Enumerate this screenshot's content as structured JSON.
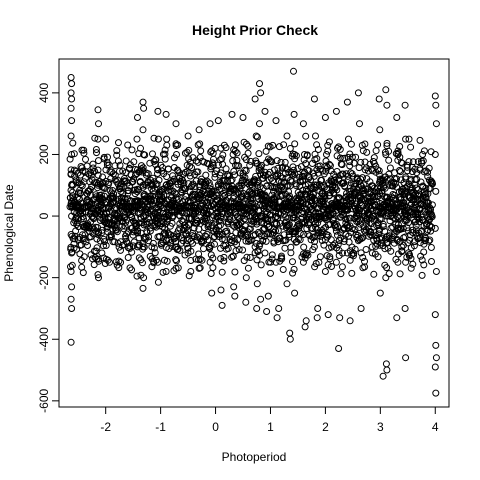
{
  "chart_data": {
    "type": "scatter",
    "title": "Height Prior Check",
    "xlabel": "Photoperiod",
    "ylabel": "Phenological Date",
    "xlim": [
      -2.85,
      4.25
    ],
    "ylim": [
      -620,
      510
    ],
    "xticks": [
      -2,
      -1,
      0,
      1,
      2,
      3,
      4
    ],
    "xtick_labels": [
      "-2",
      "-1",
      "0",
      "1",
      "2",
      "3",
      "4"
    ],
    "yticks": [
      -600,
      -400,
      -200,
      0,
      200,
      400
    ],
    "ytick_labels": [
      "-600",
      "-400",
      "-200",
      "0",
      "200",
      "400"
    ],
    "grid": false,
    "marker": "open-circle",
    "point_color": "#000000",
    "series": [
      {
        "points": [
          [
            -2.63,
            450
          ],
          [
            -2.62,
            430
          ],
          [
            -2.63,
            400
          ],
          [
            -2.62,
            380
          ],
          [
            -2.63,
            350
          ],
          [
            -2.62,
            310
          ],
          [
            -2.63,
            260
          ],
          [
            -2.62,
            200
          ],
          [
            -2.63,
            150
          ],
          [
            -2.62,
            100
          ],
          [
            -2.63,
            40
          ],
          [
            -2.62,
            0
          ],
          [
            -2.63,
            -60
          ],
          [
            -2.62,
            -120
          ],
          [
            -2.63,
            -180
          ],
          [
            -2.62,
            -230
          ],
          [
            -2.63,
            -270
          ],
          [
            -2.62,
            -300
          ],
          [
            -2.63,
            -410
          ],
          [
            -2.14,
            345
          ],
          [
            -2.13,
            300
          ],
          [
            -2.14,
            250
          ],
          [
            -2.13,
            180
          ],
          [
            -2.14,
            100
          ],
          [
            -2.13,
            20
          ],
          [
            -2.14,
            -60
          ],
          [
            -2.13,
            -140
          ],
          [
            -2.14,
            -190
          ],
          [
            -2.13,
            -200
          ],
          [
            -1.42,
            320
          ],
          [
            -1.43,
            250
          ],
          [
            -1.42,
            150
          ],
          [
            -1.43,
            50
          ],
          [
            -1.42,
            -100
          ],
          [
            -1.43,
            -195
          ],
          [
            -1.32,
            370
          ],
          [
            -1.31,
            350
          ],
          [
            -1.32,
            280
          ],
          [
            -1.31,
            200
          ],
          [
            -1.32,
            100
          ],
          [
            -1.31,
            0
          ],
          [
            -1.32,
            -100
          ],
          [
            -1.31,
            -200
          ],
          [
            -1.32,
            -235
          ],
          [
            -1.05,
            340
          ],
          [
            -1.04,
            250
          ],
          [
            -1.05,
            150
          ],
          [
            -1.04,
            0
          ],
          [
            -1.05,
            -150
          ],
          [
            -1.04,
            -215
          ],
          [
            -0.9,
            330
          ],
          [
            -0.89,
            250
          ],
          [
            -0.9,
            100
          ],
          [
            -0.89,
            -80
          ],
          [
            -0.9,
            -180
          ],
          [
            -0.72,
            300
          ],
          [
            -0.71,
            200
          ],
          [
            -0.72,
            60
          ],
          [
            -0.71,
            -100
          ],
          [
            -0.72,
            -170
          ],
          [
            -0.5,
            260
          ],
          [
            -0.48,
            140
          ],
          [
            -0.47,
            10
          ],
          [
            -0.5,
            -120
          ],
          [
            -0.45,
            -180
          ],
          [
            -0.3,
            280
          ],
          [
            -0.28,
            190
          ],
          [
            -0.27,
            60
          ],
          [
            -0.26,
            -80
          ],
          [
            -0.3,
            -170
          ],
          [
            -0.1,
            300
          ],
          [
            -0.08,
            160
          ],
          [
            -0.06,
            40
          ],
          [
            -0.1,
            -150
          ],
          [
            -0.07,
            -250
          ],
          [
            0.05,
            310
          ],
          [
            0.1,
            220
          ],
          [
            0.12,
            100
          ],
          [
            0.08,
            -60
          ],
          [
            0.1,
            -240
          ],
          [
            0.12,
            -290
          ],
          [
            0.3,
            330
          ],
          [
            0.32,
            200
          ],
          [
            0.34,
            80
          ],
          [
            0.3,
            -80
          ],
          [
            0.33,
            -230
          ],
          [
            0.35,
            -260
          ],
          [
            0.5,
            320
          ],
          [
            0.52,
            240
          ],
          [
            0.55,
            110
          ],
          [
            0.5,
            -50
          ],
          [
            0.56,
            -200
          ],
          [
            0.55,
            -280
          ],
          [
            0.72,
            380
          ],
          [
            0.74,
            260
          ],
          [
            0.76,
            100
          ],
          [
            0.72,
            -100
          ],
          [
            0.76,
            -220
          ],
          [
            0.75,
            -300
          ],
          [
            0.8,
            430
          ],
          [
            0.82,
            400
          ],
          [
            0.8,
            300
          ],
          [
            0.83,
            150
          ],
          [
            0.81,
            -90
          ],
          [
            0.82,
            -270
          ],
          [
            0.9,
            340
          ],
          [
            0.92,
            210
          ],
          [
            0.95,
            50
          ],
          [
            0.9,
            -120
          ],
          [
            0.96,
            -260
          ],
          [
            0.93,
            -310
          ],
          [
            1.1,
            310
          ],
          [
            1.12,
            180
          ],
          [
            1.14,
            30
          ],
          [
            1.1,
            -150
          ],
          [
            1.15,
            -300
          ],
          [
            1.12,
            -330
          ],
          [
            1.3,
            260
          ],
          [
            1.32,
            100
          ],
          [
            1.34,
            -60
          ],
          [
            1.3,
            -220
          ],
          [
            1.36,
            -400
          ],
          [
            1.35,
            -380
          ],
          [
            1.42,
            470
          ],
          [
            1.43,
            330
          ],
          [
            1.44,
            200
          ],
          [
            1.42,
            -50
          ],
          [
            1.44,
            -250
          ],
          [
            1.6,
            300
          ],
          [
            1.62,
            200
          ],
          [
            1.64,
            40
          ],
          [
            1.6,
            -150
          ],
          [
            1.65,
            -340
          ],
          [
            1.63,
            -360
          ],
          [
            1.8,
            380
          ],
          [
            1.82,
            260
          ],
          [
            1.84,
            100
          ],
          [
            1.8,
            -100
          ],
          [
            1.86,
            -300
          ],
          [
            1.85,
            -330
          ],
          [
            2.0,
            320
          ],
          [
            2.02,
            200
          ],
          [
            2.04,
            20
          ],
          [
            2.0,
            -180
          ],
          [
            2.05,
            -320
          ],
          [
            2.2,
            340
          ],
          [
            2.22,
            220
          ],
          [
            2.24,
            60
          ],
          [
            2.2,
            -150
          ],
          [
            2.26,
            -330
          ],
          [
            2.24,
            -430
          ],
          [
            2.4,
            370
          ],
          [
            2.42,
            250
          ],
          [
            2.44,
            80
          ],
          [
            2.4,
            -120
          ],
          [
            2.45,
            -340
          ],
          [
            2.6,
            400
          ],
          [
            2.62,
            300
          ],
          [
            2.64,
            120
          ],
          [
            2.6,
            -80
          ],
          [
            2.65,
            -300
          ],
          [
            2.98,
            380
          ],
          [
            2.99,
            280
          ],
          [
            3.0,
            120
          ],
          [
            2.98,
            -50
          ],
          [
            3.0,
            -250
          ],
          [
            3.1,
            410
          ],
          [
            3.12,
            360
          ],
          [
            3.1,
            200
          ],
          [
            3.12,
            0
          ],
          [
            3.1,
            -200
          ],
          [
            3.11,
            -480
          ],
          [
            3.05,
            -520
          ],
          [
            3.12,
            -500
          ],
          [
            3.3,
            320
          ],
          [
            3.32,
            200
          ],
          [
            3.3,
            40
          ],
          [
            3.32,
            -150
          ],
          [
            3.3,
            -330
          ],
          [
            3.45,
            360
          ],
          [
            3.46,
            250
          ],
          [
            3.45,
            80
          ],
          [
            3.46,
            -150
          ],
          [
            3.45,
            -300
          ],
          [
            3.46,
            -460
          ],
          [
            4.0,
            390
          ],
          [
            4.01,
            360
          ],
          [
            4.02,
            300
          ],
          [
            4.0,
            200
          ],
          [
            4.01,
            80
          ],
          [
            4.0,
            -40
          ],
          [
            4.02,
            -180
          ],
          [
            4.0,
            -320
          ],
          [
            4.01,
            -420
          ],
          [
            4.02,
            -460
          ],
          [
            4.0,
            -490
          ],
          [
            4.01,
            -575
          ]
        ]
      }
    ]
  }
}
